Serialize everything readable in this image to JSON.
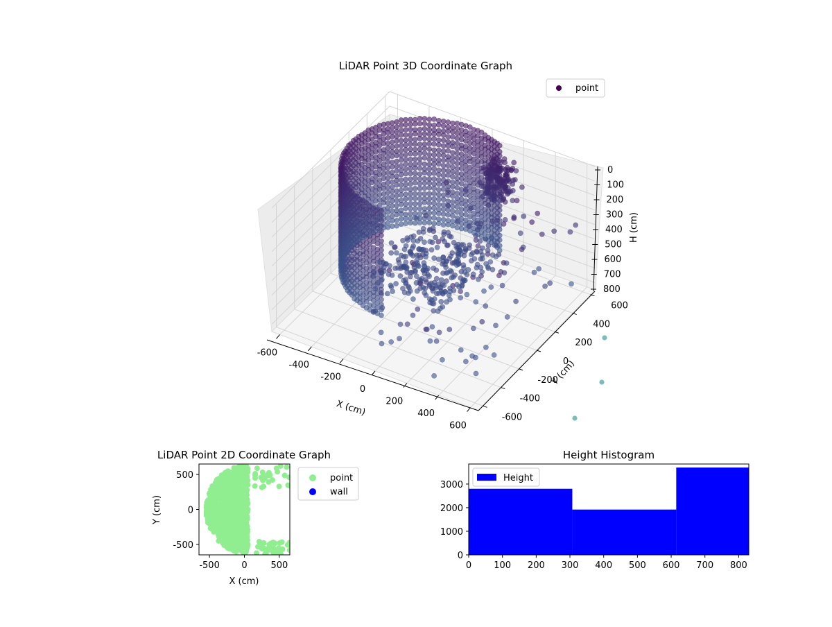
{
  "chart_data": [
    {
      "type": "scatter",
      "projection": "3d",
      "title": "LiDAR Point 3D Coordinate Graph",
      "xlabel": "X (cm)",
      "ylabel": "Y (cm)",
      "zlabel": "H (cm)",
      "xlim": [
        -650,
        650
      ],
      "ylim": [
        -650,
        650
      ],
      "zlim": [
        850,
        0
      ],
      "xticks": [
        "-600",
        "-400",
        "-200",
        "0",
        "200",
        "400",
        "600"
      ],
      "yticks": [
        "-600",
        "-400",
        "-200",
        "0",
        "200",
        "400",
        "600"
      ],
      "zticks": [
        "0",
        "100",
        "200",
        "300",
        "400",
        "500",
        "600",
        "700",
        "800"
      ],
      "grid": true,
      "legend": {
        "position": "top-right",
        "entries": [
          "point"
        ]
      },
      "series": [
        {
          "name": "point",
          "color": "#440154",
          "colormap": "viridis",
          "alpha": 0.6
        }
      ],
      "shape_description": "dense arc-shaped wall of points spanning roughly x -600..200, y -100..650, height 0..800, plus scattered outliers"
    },
    {
      "type": "scatter",
      "title": "LiDAR Point 2D Coordinate Graph",
      "xlabel": "X (cm)",
      "ylabel": "Y (cm)",
      "xlim": [
        -650,
        650
      ],
      "ylim": [
        -650,
        650
      ],
      "xticks": [
        "-500",
        "0",
        "500"
      ],
      "yticks": [
        "-500",
        "0",
        "500"
      ],
      "legend": {
        "position": "outside-right",
        "entries": [
          "point",
          "wall"
        ]
      },
      "series": [
        {
          "name": "point",
          "color": "#90ee90"
        },
        {
          "name": "wall",
          "color": "#0000ff",
          "values": []
        }
      ]
    },
    {
      "type": "bar",
      "subtype": "histogram",
      "title": "Height Histogram",
      "xlabel": "",
      "ylabel": "",
      "xlim": [
        0,
        830
      ],
      "ylim": [
        0,
        3850
      ],
      "xticks": [
        "0",
        "100",
        "200",
        "300",
        "400",
        "500",
        "600",
        "700",
        "800"
      ],
      "yticks": [
        "0",
        "1000",
        "2000",
        "3000"
      ],
      "legend": {
        "position": "top-left",
        "entries": [
          "Height"
        ]
      },
      "bins": [
        [
          0,
          307
        ],
        [
          307,
          615
        ],
        [
          615,
          830
        ]
      ],
      "values": [
        2800,
        1920,
        3700
      ],
      "series": [
        {
          "name": "Height",
          "color": "#0000ff"
        }
      ]
    }
  ]
}
